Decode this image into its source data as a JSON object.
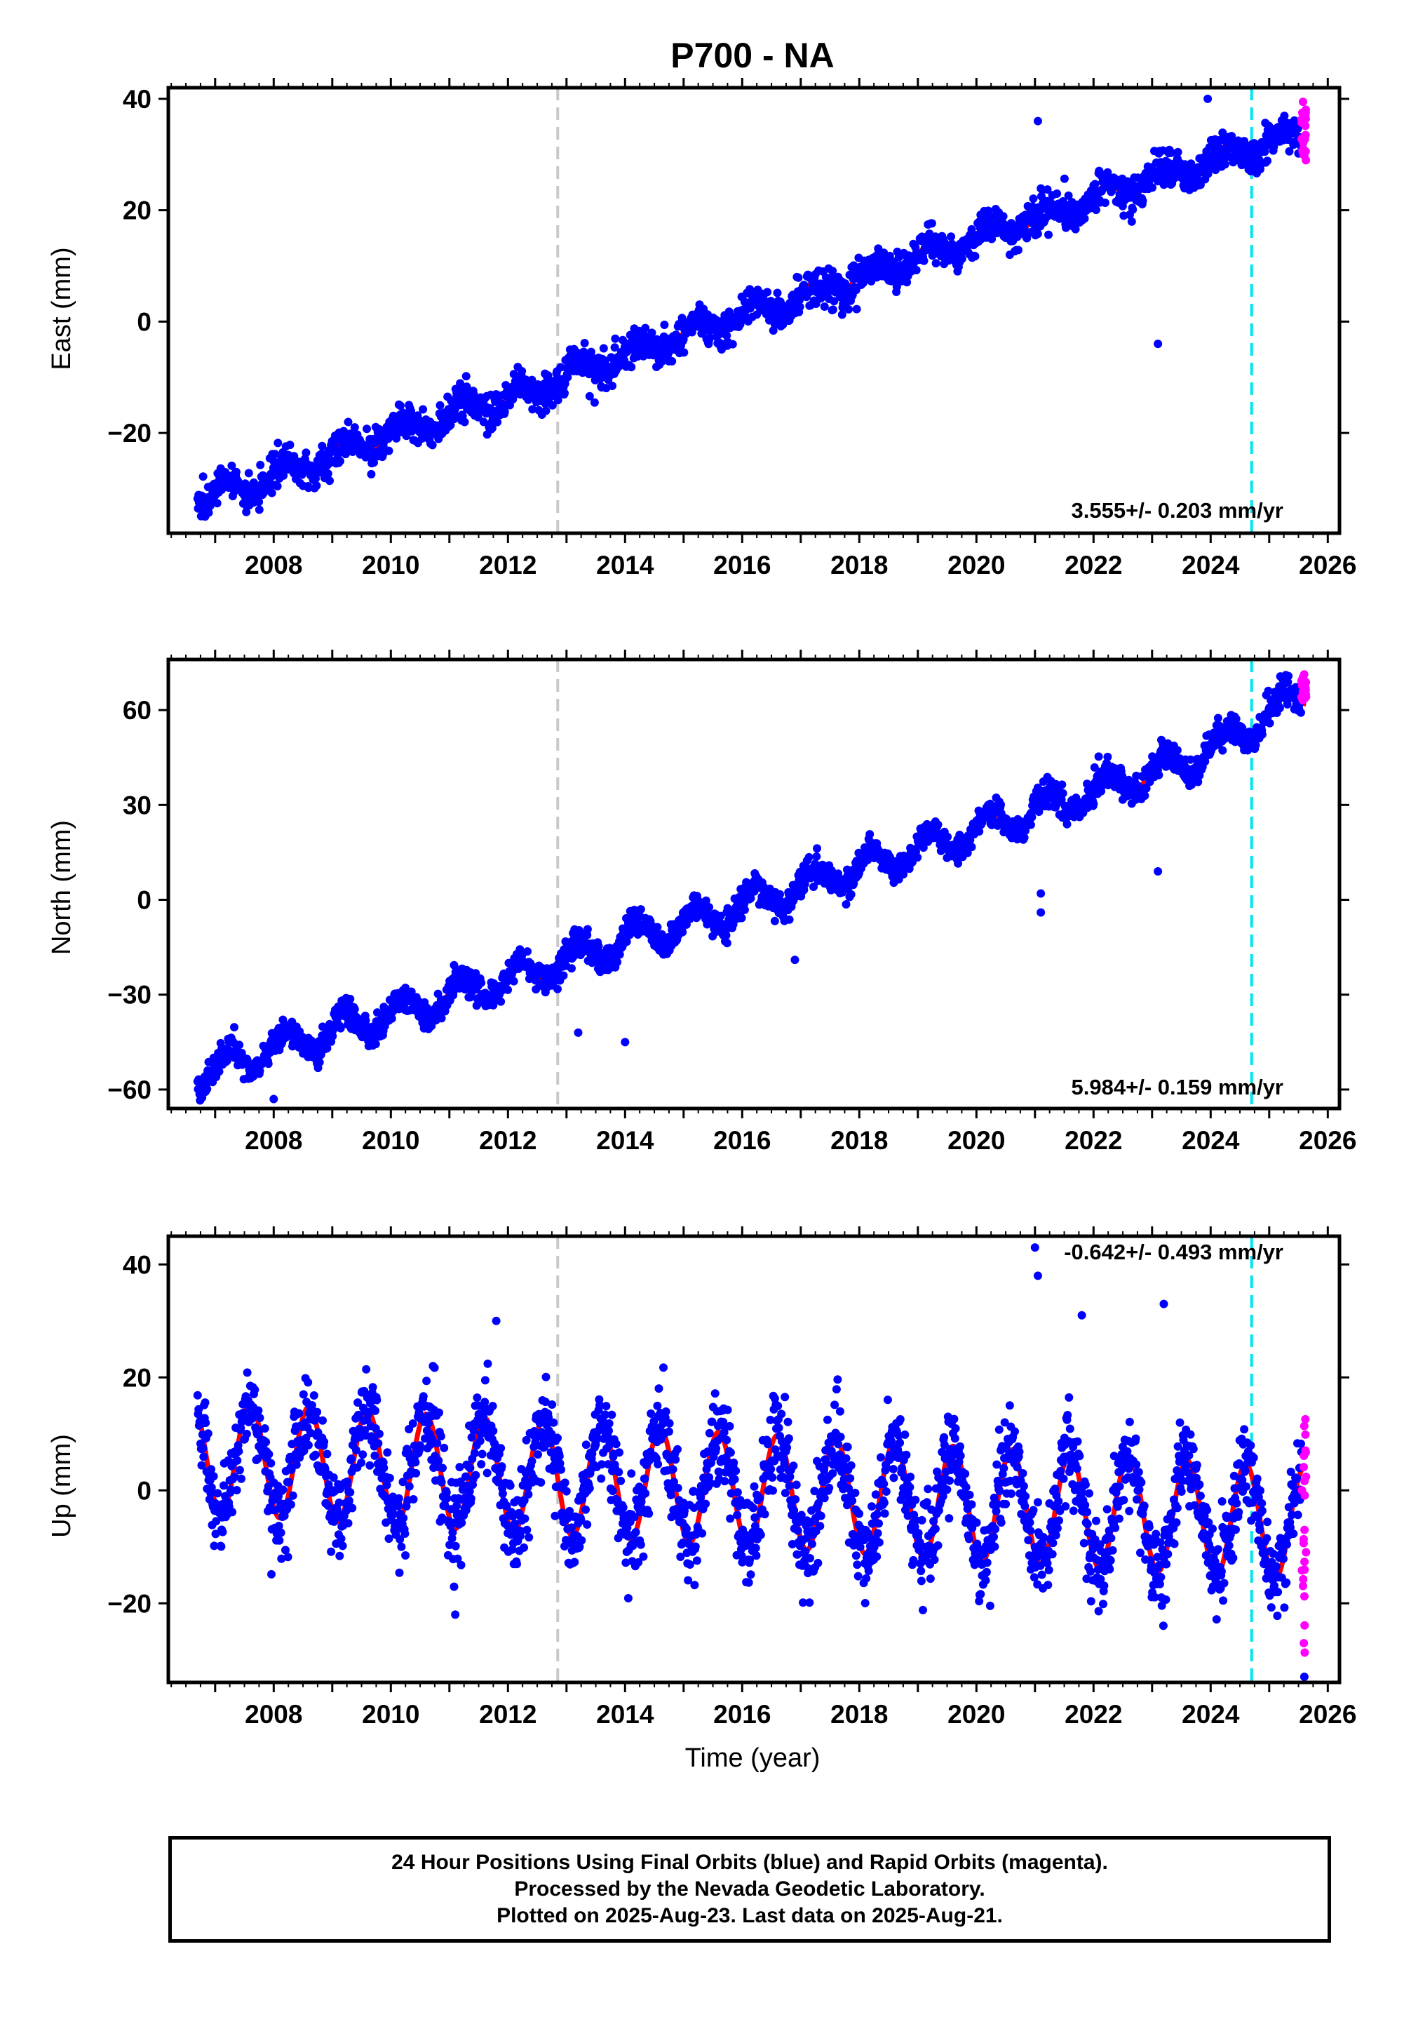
{
  "title": "P700 - NA",
  "caption": {
    "line1": "24 Hour Positions Using Final Orbits (blue) and Rapid Orbits (magenta).",
    "line2": "Processed by the Nevada Geodetic Laboratory.",
    "line3": "Plotted on 2025-Aug-23. Last data on 2025-Aug-21."
  },
  "colors": {
    "final_orbits": "#0000ff",
    "rapid_orbits": "#ff00ff",
    "model_fit": "#ff0000",
    "equipment_change": "#c8c8c8",
    "recent_marker": "#00e5ee"
  },
  "chart_data": [
    {
      "type": "scatter",
      "component": "east",
      "ylabel": "East (mm)",
      "xlim": [
        2006.2,
        2026.2
      ],
      "ylim": [
        -38,
        42
      ],
      "xticks": [
        2008,
        2010,
        2012,
        2014,
        2016,
        2018,
        2020,
        2022,
        2024,
        2026
      ],
      "yticks": [
        -20,
        0,
        20,
        40
      ],
      "grid": false,
      "rate_label": "3.555+/- 0.203 mm/yr",
      "rate_position": "bottom-right",
      "vertical_lines": [
        {
          "x": 2012.85,
          "style": "dashed",
          "color": "gray"
        },
        {
          "x": 2024.7,
          "style": "dashed",
          "color": "cyan"
        }
      ],
      "data_span": [
        2006.7,
        2025.63
      ],
      "rapid_span": [
        2025.55,
        2025.63
      ],
      "model": [
        {
          "x": 2006.7,
          "y": -31
        },
        {
          "x": 2007.5,
          "y": -30
        },
        {
          "x": 2008.5,
          "y": -26
        },
        {
          "x": 2010,
          "y": -20
        },
        {
          "x": 2012,
          "y": -14
        },
        {
          "x": 2014,
          "y": -6
        },
        {
          "x": 2016,
          "y": 1
        },
        {
          "x": 2018,
          "y": 8
        },
        {
          "x": 2020,
          "y": 15
        },
        {
          "x": 2022,
          "y": 22
        },
        {
          "x": 2024,
          "y": 29
        },
        {
          "x": 2025.63,
          "y": 34
        }
      ],
      "seasonal_amplitude": 1.7,
      "scatter_sigma": 1.6,
      "outliers": [
        {
          "x": 2023.1,
          "y": -4
        },
        {
          "x": 2021.05,
          "y": 36
        },
        {
          "x": 2023.95,
          "y": 40
        }
      ],
      "rapid_range": [
        26,
        41
      ]
    },
    {
      "type": "scatter",
      "component": "north",
      "ylabel": "North (mm)",
      "xlim": [
        2006.2,
        2026.2
      ],
      "ylim": [
        -66,
        76
      ],
      "xticks": [
        2008,
        2010,
        2012,
        2014,
        2016,
        2018,
        2020,
        2022,
        2024,
        2026
      ],
      "yticks": [
        -60,
        -30,
        0,
        30,
        60
      ],
      "grid": false,
      "rate_label": "5.984+/- 0.159 mm/yr",
      "rate_position": "bottom-right",
      "vertical_lines": [
        {
          "x": 2012.85,
          "style": "dashed",
          "color": "gray"
        },
        {
          "x": 2024.7,
          "style": "dashed",
          "color": "cyan"
        }
      ],
      "data_span": [
        2006.7,
        2025.63
      ],
      "rapid_span": [
        2025.55,
        2025.63
      ],
      "model": [
        {
          "x": 2006.7,
          "y": -56
        },
        {
          "x": 2008,
          "y": -47
        },
        {
          "x": 2010,
          "y": -36
        },
        {
          "x": 2012,
          "y": -25
        },
        {
          "x": 2014,
          "y": -13
        },
        {
          "x": 2016,
          "y": -2
        },
        {
          "x": 2018,
          "y": 10
        },
        {
          "x": 2020,
          "y": 22
        },
        {
          "x": 2022,
          "y": 34
        },
        {
          "x": 2024,
          "y": 47
        },
        {
          "x": 2025.63,
          "y": 66
        }
      ],
      "seasonal_amplitude": 4.5,
      "scatter_sigma": 2.2,
      "outliers": [
        {
          "x": 2021.1,
          "y": -4
        },
        {
          "x": 2021.1,
          "y": 2
        },
        {
          "x": 2016.9,
          "y": -19
        },
        {
          "x": 2014,
          "y": -45
        },
        {
          "x": 2013.2,
          "y": -42
        },
        {
          "x": 2023.1,
          "y": 9
        },
        {
          "x": 2008,
          "y": -63
        }
      ],
      "rapid_range": [
        62,
        72
      ]
    },
    {
      "type": "scatter",
      "component": "up",
      "ylabel": "Up (mm)",
      "xlabel": "Time (year)",
      "xlim": [
        2006.2,
        2026.2
      ],
      "ylim": [
        -34,
        45
      ],
      "xticks": [
        2008,
        2010,
        2012,
        2014,
        2016,
        2018,
        2020,
        2022,
        2024,
        2026
      ],
      "yticks": [
        -20,
        0,
        20,
        40
      ],
      "grid": false,
      "rate_label": "-0.642+/- 0.493 mm/yr",
      "rate_position": "top-right",
      "vertical_lines": [
        {
          "x": 2012.85,
          "style": "dashed",
          "color": "gray"
        },
        {
          "x": 2024.7,
          "style": "dashed",
          "color": "cyan"
        }
      ],
      "data_span": [
        2006.7,
        2025.63
      ],
      "rapid_span": [
        2025.55,
        2025.63
      ],
      "model": [
        {
          "x": 2006.7,
          "y": 6
        },
        {
          "x": 2025.63,
          "y": -6
        }
      ],
      "seasonal_amplitude": 10,
      "scatter_sigma": 4,
      "outliers": [
        {
          "x": 2021,
          "y": 43
        },
        {
          "x": 2021.05,
          "y": 38
        },
        {
          "x": 2023.2,
          "y": 33
        },
        {
          "x": 2021.8,
          "y": 31
        },
        {
          "x": 2011.8,
          "y": 30
        },
        {
          "x": 2011.1,
          "y": -22
        },
        {
          "x": 2025.6,
          "y": -33
        }
      ],
      "rapid_range": [
        -33,
        19
      ]
    }
  ]
}
